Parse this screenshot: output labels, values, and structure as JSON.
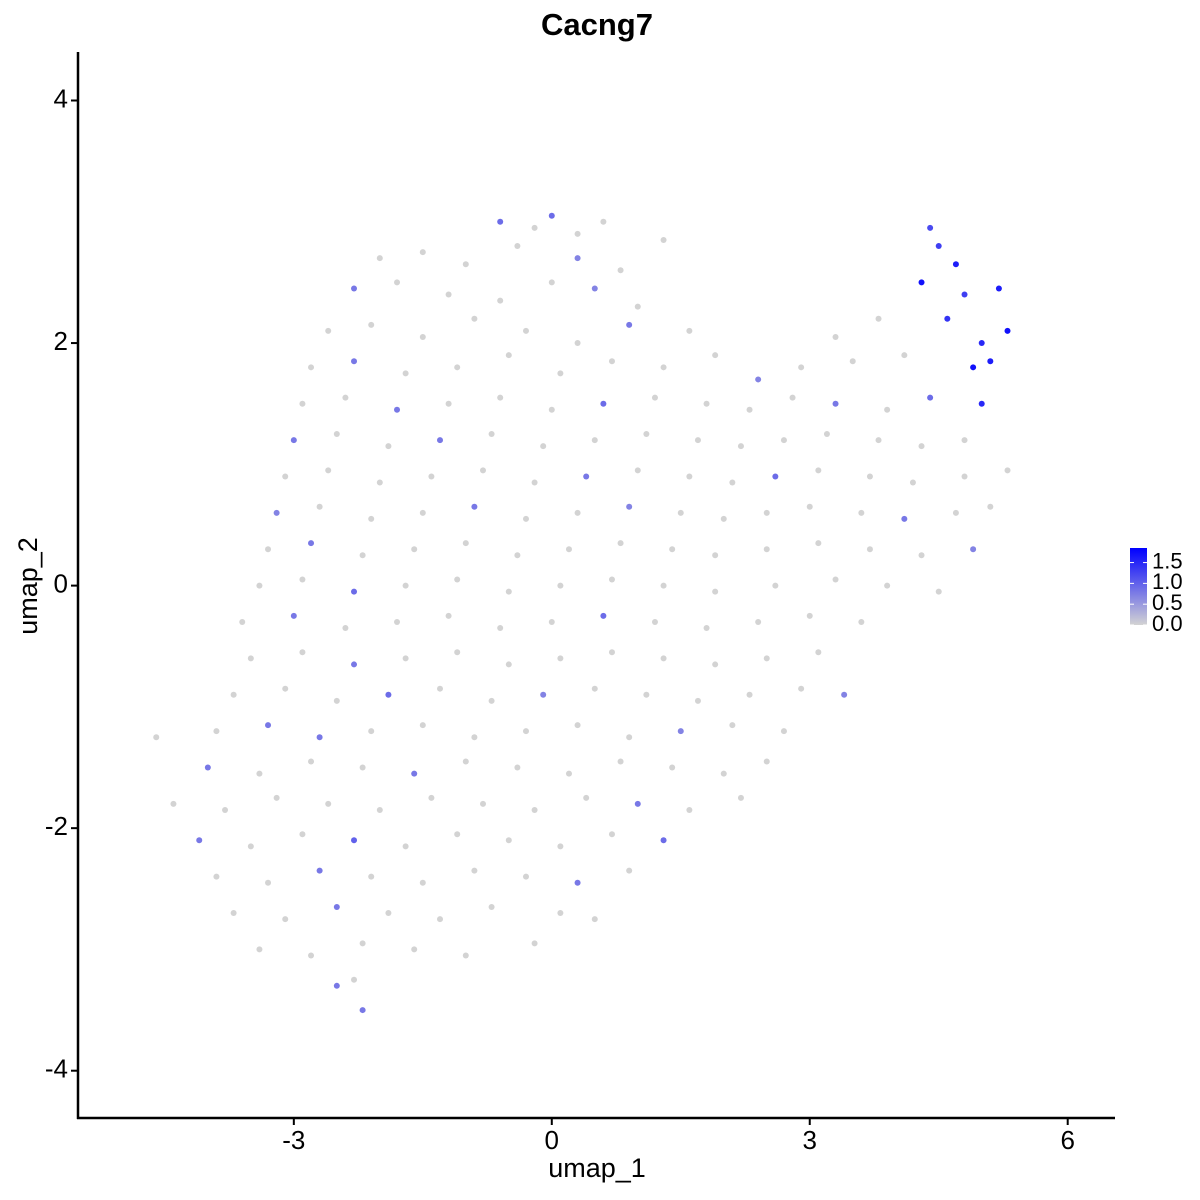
{
  "chart_data": {
    "type": "scatter",
    "title": "Cacng7",
    "xlabel": "umap_1",
    "ylabel": "umap_2",
    "xlim": [
      -5.51,
      6.55
    ],
    "ylim": [
      -4.39,
      4.4
    ],
    "xticks": [
      -3,
      0,
      3,
      6
    ],
    "yticks": [
      -4,
      -2,
      0,
      2,
      4
    ],
    "colors": [
      "#d3d3d3",
      "#0000ff"
    ],
    "color_lim": [
      0,
      1.85
    ],
    "color_ticks": [
      {
        "value": 0,
        "label": "0.0"
      },
      {
        "value": 0.5,
        "label": "0.5"
      },
      {
        "value": 1,
        "label": "1.0"
      },
      {
        "value": 1.5,
        "label": "1.5"
      }
    ],
    "x": [
      -0.6,
      -0.2,
      0.0,
      0.3,
      0.6,
      4.4,
      -2.0,
      -1.5,
      -1.0,
      -0.4,
      0.3,
      0.8,
      1.3,
      4.5,
      4.7,
      -2.3,
      -1.8,
      -1.2,
      -0.6,
      0.0,
      0.5,
      1.0,
      4.3,
      4.8,
      5.2,
      -2.6,
      -2.1,
      -1.5,
      -0.9,
      -0.3,
      0.3,
      0.9,
      1.6,
      3.3,
      3.8,
      4.6,
      5.0,
      5.3,
      -2.8,
      -2.3,
      -1.7,
      -1.1,
      -0.5,
      0.1,
      0.7,
      1.3,
      1.9,
      2.4,
      2.9,
      3.5,
      4.1,
      4.9,
      5.1,
      -2.9,
      -2.4,
      -1.8,
      -1.2,
      -0.6,
      0.0,
      0.6,
      1.2,
      1.8,
      2.3,
      2.8,
      3.3,
      3.9,
      4.4,
      5.0,
      -3.0,
      -2.5,
      -1.9,
      -1.3,
      -0.7,
      -0.1,
      0.5,
      1.1,
      1.7,
      2.2,
      2.7,
      3.2,
      3.8,
      4.3,
      4.8,
      -3.1,
      -2.6,
      -2.0,
      -1.4,
      -0.8,
      -0.2,
      0.4,
      1.0,
      1.6,
      2.1,
      2.6,
      3.1,
      3.7,
      4.2,
      4.8,
      5.3,
      -3.2,
      -2.7,
      -2.1,
      -1.5,
      -0.9,
      -0.3,
      0.3,
      0.9,
      1.5,
      2.0,
      2.5,
      3.0,
      3.6,
      4.1,
      4.7,
      5.1,
      -3.3,
      -2.8,
      -2.2,
      -1.6,
      -1.0,
      -0.4,
      0.2,
      0.8,
      1.4,
      1.9,
      2.5,
      3.1,
      3.7,
      4.3,
      4.9,
      -3.4,
      -2.9,
      -2.3,
      -1.7,
      -1.1,
      -0.5,
      0.1,
      0.7,
      1.3,
      1.9,
      2.6,
      3.3,
      3.9,
      4.5,
      -3.6,
      -3.0,
      -2.4,
      -1.8,
      -1.2,
      -0.6,
      0.0,
      0.6,
      1.2,
      1.8,
      2.4,
      3.0,
      3.6,
      -3.5,
      -2.9,
      -2.3,
      -1.7,
      -1.1,
      -0.5,
      0.1,
      0.7,
      1.3,
      1.9,
      2.5,
      3.1,
      -3.7,
      -3.1,
      -2.5,
      -1.9,
      -1.3,
      -0.7,
      -0.1,
      0.5,
      1.1,
      1.7,
      2.3,
      2.9,
      3.4,
      -4.6,
      -3.9,
      -3.3,
      -2.7,
      -2.1,
      -1.5,
      -0.9,
      -0.3,
      0.3,
      0.9,
      1.5,
      2.1,
      2.7,
      -4.0,
      -3.4,
      -2.8,
      -2.2,
      -1.6,
      -1.0,
      -0.4,
      0.2,
      0.8,
      1.4,
      2.0,
      2.5,
      -4.4,
      -3.8,
      -3.2,
      -2.6,
      -2.0,
      -1.4,
      -0.8,
      -0.2,
      0.4,
      1.0,
      1.6,
      2.2,
      -4.1,
      -3.5,
      -2.9,
      -2.3,
      -1.7,
      -1.1,
      -0.5,
      0.1,
      0.7,
      1.3,
      -3.9,
      -3.3,
      -2.7,
      -2.1,
      -1.5,
      -0.9,
      -0.3,
      0.3,
      0.9,
      -3.7,
      -3.1,
      -2.5,
      -1.9,
      -1.3,
      -0.7,
      0.1,
      0.5,
      -3.4,
      -2.8,
      -2.2,
      -1.6,
      -1.0,
      -0.2,
      -2.5,
      -2.3,
      -2.2
    ],
    "y": [
      3.0,
      2.95,
      3.05,
      2.9,
      3.0,
      2.95,
      2.7,
      2.75,
      2.65,
      2.8,
      2.7,
      2.6,
      2.85,
      2.8,
      2.65,
      2.45,
      2.5,
      2.4,
      2.35,
      2.5,
      2.45,
      2.3,
      2.5,
      2.4,
      2.45,
      2.1,
      2.15,
      2.05,
      2.2,
      2.1,
      2.0,
      2.15,
      2.1,
      2.05,
      2.2,
      2.2,
      2.0,
      2.1,
      1.8,
      1.85,
      1.75,
      1.8,
      1.9,
      1.75,
      1.85,
      1.8,
      1.9,
      1.7,
      1.8,
      1.85,
      1.9,
      1.8,
      1.85,
      1.5,
      1.55,
      1.45,
      1.5,
      1.55,
      1.45,
      1.5,
      1.55,
      1.5,
      1.45,
      1.55,
      1.5,
      1.45,
      1.55,
      1.5,
      1.2,
      1.25,
      1.15,
      1.2,
      1.25,
      1.15,
      1.2,
      1.25,
      1.2,
      1.15,
      1.2,
      1.25,
      1.2,
      1.15,
      1.2,
      0.9,
      0.95,
      0.85,
      0.9,
      0.95,
      0.85,
      0.9,
      0.95,
      0.9,
      0.85,
      0.9,
      0.95,
      0.9,
      0.85,
      0.9,
      0.95,
      0.6,
      0.65,
      0.55,
      0.6,
      0.65,
      0.55,
      0.6,
      0.65,
      0.6,
      0.55,
      0.6,
      0.65,
      0.6,
      0.55,
      0.6,
      0.65,
      0.3,
      0.35,
      0.25,
      0.3,
      0.35,
      0.25,
      0.3,
      0.35,
      0.3,
      0.25,
      0.3,
      0.35,
      0.3,
      0.25,
      0.3,
      0.0,
      0.05,
      -0.05,
      0.0,
      0.05,
      -0.05,
      0.0,
      0.05,
      0.0,
      -0.05,
      0.0,
      0.05,
      0.0,
      -0.05,
      -0.3,
      -0.25,
      -0.35,
      -0.3,
      -0.25,
      -0.35,
      -0.3,
      -0.25,
      -0.3,
      -0.35,
      -0.3,
      -0.25,
      -0.3,
      -0.6,
      -0.55,
      -0.65,
      -0.6,
      -0.55,
      -0.65,
      -0.6,
      -0.55,
      -0.6,
      -0.65,
      -0.6,
      -0.55,
      -0.9,
      -0.85,
      -0.95,
      -0.9,
      -0.85,
      -0.95,
      -0.9,
      -0.85,
      -0.9,
      -0.95,
      -0.9,
      -0.85,
      -0.9,
      -1.25,
      -1.2,
      -1.15,
      -1.25,
      -1.2,
      -1.15,
      -1.25,
      -1.2,
      -1.15,
      -1.25,
      -1.2,
      -1.15,
      -1.2,
      -1.5,
      -1.55,
      -1.45,
      -1.5,
      -1.55,
      -1.45,
      -1.5,
      -1.55,
      -1.45,
      -1.5,
      -1.55,
      -1.45,
      -1.8,
      -1.85,
      -1.75,
      -1.8,
      -1.85,
      -1.75,
      -1.8,
      -1.85,
      -1.75,
      -1.8,
      -1.85,
      -1.75,
      -2.1,
      -2.15,
      -2.05,
      -2.1,
      -2.15,
      -2.05,
      -2.1,
      -2.15,
      -2.05,
      -2.1,
      -2.4,
      -2.45,
      -2.35,
      -2.4,
      -2.45,
      -2.35,
      -2.4,
      -2.45,
      -2.35,
      -2.7,
      -2.75,
      -2.65,
      -2.7,
      -2.75,
      -2.65,
      -2.7,
      -2.75,
      -3.0,
      -3.05,
      -2.95,
      -3.0,
      -3.05,
      -2.95,
      -3.3,
      -3.25,
      -3.5
    ],
    "values": [
      0.9,
      0,
      0.9,
      0,
      0,
      1.2,
      0,
      0,
      0,
      0,
      0.7,
      0,
      0,
      1.3,
      1.6,
      0.8,
      0,
      0,
      0,
      0,
      0.7,
      0,
      1.7,
      1.3,
      1.6,
      0,
      0,
      0,
      0,
      0,
      0,
      0.8,
      0,
      0,
      0,
      1.4,
      1.5,
      1.7,
      0,
      0.8,
      0,
      0,
      0,
      0,
      0,
      0,
      0,
      0.7,
      0,
      0,
      0,
      1.7,
      1.6,
      0,
      0,
      0.8,
      0,
      0,
      0,
      0.9,
      0,
      0,
      0,
      0,
      0.8,
      0,
      0.9,
      1.5,
      0.8,
      0,
      0,
      0.8,
      0,
      0,
      0,
      0,
      0,
      0,
      0,
      0,
      0,
      0,
      0,
      0,
      0,
      0,
      0,
      0,
      0,
      0.8,
      0,
      0,
      0,
      0.9,
      0,
      0,
      0,
      0,
      0,
      0.7,
      0,
      0,
      0,
      0.8,
      0,
      0,
      0.7,
      0,
      0,
      0,
      0,
      0,
      0.8,
      0,
      0,
      0,
      0.8,
      0,
      0,
      0,
      0,
      0,
      0,
      0,
      0,
      0,
      0,
      0,
      0,
      0.7,
      0,
      0,
      0.9,
      0,
      0,
      0,
      0,
      0,
      0,
      0,
      0,
      0,
      0,
      0,
      0,
      0.8,
      0,
      0,
      0,
      0,
      0,
      0.9,
      0,
      0,
      0,
      0,
      0,
      0,
      0,
      0.8,
      0,
      0,
      0,
      0,
      0,
      0,
      0,
      0,
      0,
      0,
      0,
      0,
      0.9,
      0,
      0,
      0.7,
      0,
      0,
      0,
      0,
      0,
      0.7,
      0,
      0,
      0.8,
      0.8,
      0,
      0,
      0,
      0,
      0,
      0,
      0.7,
      0,
      0,
      0.8,
      0,
      0,
      0,
      0.8,
      0,
      0,
      0,
      0,
      0,
      0,
      0,
      0,
      0,
      0,
      0,
      0,
      0,
      0,
      0,
      0,
      0.8,
      0,
      0,
      0.8,
      0,
      0,
      1.0,
      0,
      0,
      0,
      0,
      0,
      0.9,
      0,
      0,
      0.8,
      0,
      0,
      0,
      0,
      0.8,
      0,
      0,
      0,
      0.8,
      0,
      0,
      0,
      0,
      0,
      0,
      0,
      0,
      0,
      0,
      0,
      0.8,
      0,
      0.8
    ]
  }
}
